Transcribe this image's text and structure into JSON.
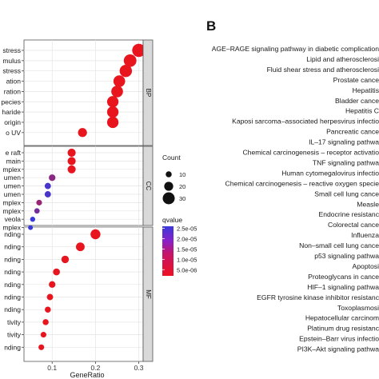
{
  "chart_data": [
    {
      "type": "scatter",
      "xlabel": "GeneRatio",
      "xlim": [
        0.035,
        0.31
      ],
      "xticks": [
        "0.1",
        "0.2",
        "0.3"
      ],
      "xtick_values": [
        0.1,
        0.2,
        0.3
      ],
      "grid": true,
      "legend_placement": "right",
      "size_legend": {
        "title": "Count",
        "labels": [
          "10",
          "20",
          "30"
        ],
        "values": [
          10,
          20,
          30
        ]
      },
      "color_legend": {
        "title": "qvalue",
        "labels": [
          "2.5e-05",
          "2.0e-05",
          "1.5e-05",
          "1.0e-05",
          "5.0e-06"
        ],
        "values": [
          2.5e-05,
          2e-05,
          1.5e-05,
          1e-05,
          5e-06
        ],
        "low_color": "#e8141e",
        "high_color": "#3a3ad9"
      },
      "facets": [
        {
          "strip": "BP",
          "terms": [
            "stress",
            "mulus",
            "stress",
            "ation",
            "ration",
            "pecies",
            "haride",
            "origin",
            "o UV"
          ],
          "generatio": [
            0.3,
            0.28,
            0.27,
            0.255,
            0.25,
            0.24,
            0.24,
            0.24,
            0.17
          ],
          "count": [
            34,
            32,
            31,
            29,
            29,
            28,
            28,
            28,
            20
          ],
          "qvalue": [
            1e-09,
            1e-09,
            1e-09,
            1e-09,
            1e-09,
            1e-09,
            1e-09,
            1e-09,
            1e-09
          ]
        },
        {
          "strip": "CC",
          "terms": [
            "e raft",
            "main",
            "mplex",
            "umen",
            "umen",
            "umen",
            "mplex",
            "mplex",
            "veola",
            "mplex"
          ],
          "generatio": [
            0.145,
            0.145,
            0.145,
            0.1,
            0.09,
            0.09,
            0.07,
            0.065,
            0.055,
            0.05
          ],
          "count": [
            17,
            17,
            17,
            12,
            11,
            11,
            9,
            8,
            7,
            6
          ],
          "qvalue": [
            2e-06,
            2e-06,
            2e-06,
            1.5e-05,
            2.4e-05,
            2.4e-05,
            1.3e-05,
            1.8e-05,
            2.6e-05,
            2.6e-05
          ]
        },
        {
          "strip": "MF",
          "terms": [
            "nding",
            "nding",
            "nding",
            "nding",
            "nding",
            "nding",
            "nding",
            "tivity",
            "tivity",
            "nding"
          ],
          "generatio": [
            0.2,
            0.165,
            0.13,
            0.11,
            0.1,
            0.095,
            0.09,
            0.085,
            0.08,
            0.075
          ],
          "count": [
            23,
            19,
            15,
            13,
            12,
            11,
            10,
            10,
            9,
            9
          ],
          "qvalue": [
            1e-09,
            1e-09,
            1e-09,
            1e-09,
            1e-09,
            1e-09,
            1e-09,
            1e-09,
            1e-09,
            1e-09
          ]
        }
      ]
    },
    {
      "type": "scatter",
      "panel_label": "B",
      "pathways": [
        "AGE–RAGE signaling pathway in diabetic complication",
        "Lipid and atherosclerosi",
        "Fluid shear stress and atherosclerosi",
        "Prostate cance",
        "Hepatitis",
        "Bladder cance",
        "Hepatitis C",
        "Kaposi sarcoma–associated herpesvirus infectio",
        "Pancreatic cance",
        "IL–17 signaling pathwa",
        "Chemical carcinogenesis – receptor activatio",
        "TNF signaling pathwa",
        "Human cytomegalovirus infectio",
        "Chemical carcinogenesis – reactive oxygen specie",
        "Small cell lung cance",
        "Measle",
        "Endocrine resistanc",
        "Colorectal cance",
        "Influenza",
        "Non–small cell lung cance",
        "p53 signaling pathwa",
        "Apoptosi",
        "Proteoglycans in cance",
        "HIF–1 signaling pathwa",
        "EGFR tyrosine kinase inhibitor resistanc",
        "Toxoplasmosi",
        "Hepatocellular carcinom",
        "Platinum drug resistanc",
        "Epstein–Barr virus infectio",
        "PI3K–Akt signaling pathwa"
      ]
    }
  ]
}
